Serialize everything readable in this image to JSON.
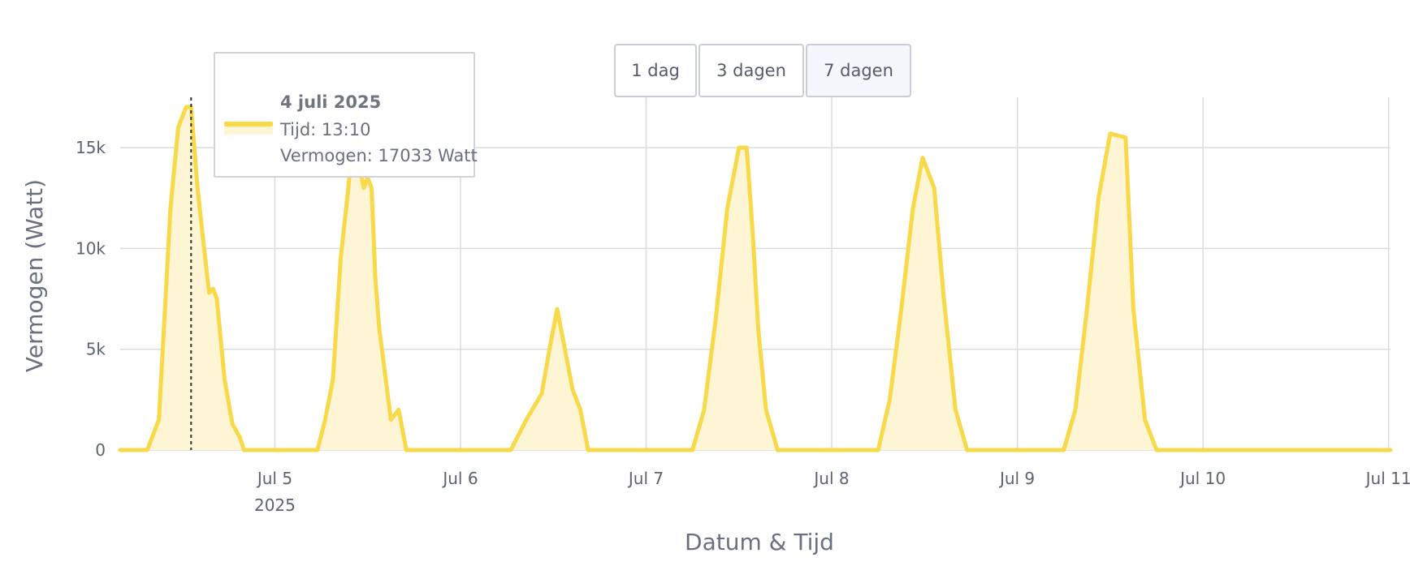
{
  "chart_data": {
    "type": "area",
    "title": "",
    "xlabel": "Datum & Tijd",
    "ylabel": "Vermogen (Watt)",
    "ylim": [
      0,
      17500
    ],
    "xlim": [
      "2025-07-04 04:00",
      "2025-07-11 00:15"
    ],
    "yticks": [
      0,
      5000,
      10000,
      15000
    ],
    "ytick_labels": [
      "0",
      "5k",
      "10k",
      "15k"
    ],
    "xticks": [
      {
        "at": "2025-07-05",
        "label": "Jul 5",
        "sublabel": "2025"
      },
      {
        "at": "2025-07-06",
        "label": "Jul 6",
        "sublabel": ""
      },
      {
        "at": "2025-07-07",
        "label": "Jul 7",
        "sublabel": ""
      },
      {
        "at": "2025-07-08",
        "label": "Jul 8",
        "sublabel": ""
      },
      {
        "at": "2025-07-09",
        "label": "Jul 9",
        "sublabel": ""
      },
      {
        "at": "2025-07-10",
        "label": "Jul 10",
        "sublabel": ""
      },
      {
        "at": "2025-07-11",
        "label": "Jul 11",
        "sublabel": ""
      }
    ],
    "grid": true,
    "colors": {
      "line": "#f7d94a",
      "fill": "#fdf5d4",
      "grid": "#d9dbe1",
      "cursor": "#333333"
    },
    "series": [
      {
        "name": "Vermogen",
        "x": [
          "2025-07-04 04:00",
          "2025-07-04 07:30",
          "2025-07-04 08:30",
          "2025-07-04 09:00",
          "2025-07-04 09:30",
          "2025-07-04 10:30",
          "2025-07-04 11:30",
          "2025-07-04 12:30",
          "2025-07-04 13:10",
          "2025-07-04 14:00",
          "2025-07-04 15:00",
          "2025-07-04 15:30",
          "2025-07-04 16:00",
          "2025-07-04 16:30",
          "2025-07-04 17:30",
          "2025-07-04 18:30",
          "2025-07-04 19:30",
          "2025-07-04 20:00",
          "2025-07-04 20:30",
          "2025-07-05 05:30",
          "2025-07-05 06:30",
          "2025-07-05 07:30",
          "2025-07-05 08:30",
          "2025-07-05 09:30",
          "2025-07-05 10:30",
          "2025-07-05 11:00",
          "2025-07-05 11:30",
          "2025-07-05 12:00",
          "2025-07-05 12:30",
          "2025-07-05 13:00",
          "2025-07-05 13:30",
          "2025-07-05 14:00",
          "2025-07-05 15:00",
          "2025-07-05 16:00",
          "2025-07-05 17:00",
          "2025-07-05 17:30",
          "2025-07-05 18:00",
          "2025-07-05 18:30",
          "2025-07-05 19:30",
          "2025-07-05 20:30",
          "2025-07-06 06:30",
          "2025-07-06 08:30",
          "2025-07-06 10:30",
          "2025-07-06 11:30",
          "2025-07-06 12:30",
          "2025-07-06 13:30",
          "2025-07-06 14:30",
          "2025-07-06 15:30",
          "2025-07-06 16:30",
          "2025-07-06 17:30",
          "2025-07-06 19:30",
          "2025-07-07 06:00",
          "2025-07-07 07:30",
          "2025-07-07 09:00",
          "2025-07-07 10:30",
          "2025-07-07 12:00",
          "2025-07-07 13:00",
          "2025-07-07 13:45",
          "2025-07-07 14:30",
          "2025-07-07 15:30",
          "2025-07-07 17:00",
          "2025-07-07 18:30",
          "2025-07-07 20:00",
          "2025-07-08 06:00",
          "2025-07-08 07:30",
          "2025-07-08 09:00",
          "2025-07-08 10:30",
          "2025-07-08 11:45",
          "2025-07-08 13:15",
          "2025-07-08 14:30",
          "2025-07-08 16:00",
          "2025-07-08 17:30",
          "2025-07-08 19:00",
          "2025-07-09 06:00",
          "2025-07-09 07:30",
          "2025-07-09 09:00",
          "2025-07-09 10:30",
          "2025-07-09 12:00",
          "2025-07-09 14:00",
          "2025-07-09 15:00",
          "2025-07-09 16:30",
          "2025-07-09 18:00",
          "2025-07-09 19:00",
          "2025-07-09 20:00",
          "2025-07-10 06:00",
          "2025-07-10 07:00",
          "2025-07-10 08:30",
          "2025-07-10 10:00",
          "2025-07-10 11:30",
          "2025-07-10 12:45",
          "2025-07-10 14:00",
          "2025-07-10 15:30",
          "2025-07-10 17:00",
          "2025-07-10 18:30",
          "2025-07-10 20:00",
          "2025-07-11 00:15"
        ],
        "y": [
          0,
          0,
          1000,
          1500,
          5000,
          12000,
          16000,
          17000,
          17033,
          13000,
          9500,
          7800,
          8000,
          7500,
          3500,
          1300,
          600,
          0,
          0,
          0,
          1500,
          3500,
          9500,
          13000,
          17500,
          14000,
          13000,
          13500,
          13000,
          8500,
          6000,
          4500,
          1500,
          2000,
          0,
          0,
          0,
          0,
          0,
          0,
          0,
          1500,
          2800,
          5000,
          7000,
          5000,
          3000,
          2000,
          0,
          0,
          0,
          0,
          2000,
          6500,
          12000,
          15000,
          15000,
          11000,
          6000,
          2000,
          0,
          0,
          0,
          0,
          2500,
          7000,
          12000,
          14500,
          13000,
          7500,
          2000,
          0,
          0,
          0,
          2000,
          7000,
          12500,
          15700,
          15500,
          7000,
          1500,
          0,
          0,
          0,
          0,
          0,
          0,
          0,
          0,
          0,
          0,
          0,
          0,
          0,
          0,
          0
        ]
      }
    ]
  },
  "buttons": [
    {
      "label": "1 dag",
      "active": false
    },
    {
      "label": "3 dagen",
      "active": false
    },
    {
      "label": "7 dagen",
      "active": true
    }
  ],
  "tooltip": {
    "title": "4 juli 2025",
    "line1": "Tijd: 13:10",
    "line2": "Vermogen: 17033 Watt",
    "cursor_x": "2025-07-04 13:10"
  }
}
